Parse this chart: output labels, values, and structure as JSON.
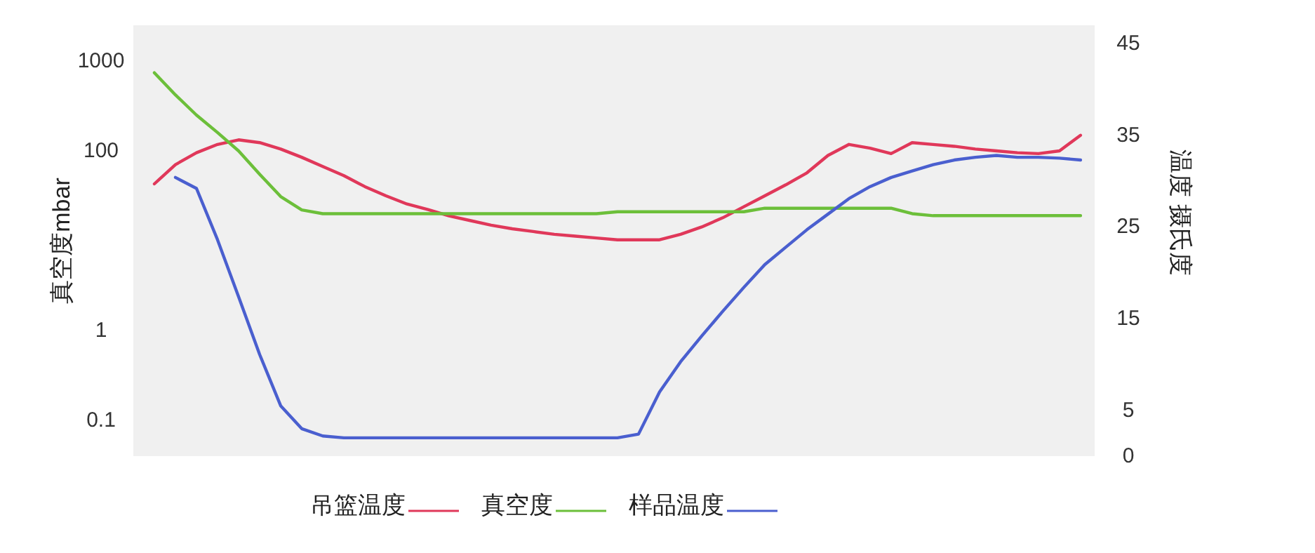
{
  "chart_data": {
    "type": "line",
    "ylabel": "真空度mbar",
    "y2label": "温度 摄氏度",
    "categories": [
      null,
      null,
      null,
      null,
      null,
      null,
      null,
      null,
      null,
      null,
      null,
      null,
      null,
      null,
      null,
      null,
      null,
      null,
      null,
      null,
      null,
      null,
      null,
      null,
      null,
      null,
      null,
      null,
      null,
      null,
      null,
      null,
      null,
      null,
      null,
      null,
      null,
      null,
      null,
      null,
      null,
      null,
      null,
      null,
      null
    ],
    "series": [
      {
        "name": "吊篮温度",
        "color": "#e0385a",
        "axis": "y2",
        "values": [
          29.7,
          31.8,
          33.1,
          34.0,
          34.5,
          34.2,
          33.5,
          32.6,
          31.6,
          30.6,
          29.4,
          28.4,
          27.5,
          26.9,
          26.2,
          25.7,
          25.2,
          24.8,
          24.5,
          24.2,
          24.0,
          23.8,
          23.6,
          23.6,
          23.6,
          24.2,
          25.0,
          26.0,
          27.2,
          28.4,
          29.6,
          30.9,
          32.8,
          34.0,
          33.6,
          33.0,
          34.2,
          34.0,
          33.8,
          33.5,
          33.3,
          33.1,
          33.0,
          33.3,
          35.0
        ]
      },
      {
        "name": "真空度",
        "color": "#6cbf3a",
        "values": [
          740,
          420,
          250,
          160,
          100,
          55,
          31,
          22,
          20,
          20,
          20,
          20,
          20,
          20,
          20,
          20,
          20,
          20,
          20,
          20,
          20,
          20,
          21,
          21,
          21,
          21,
          21,
          21,
          21,
          23,
          23,
          23,
          23,
          23,
          23,
          23,
          20,
          19,
          19,
          19,
          19,
          19,
          19,
          19,
          19
        ]
      },
      {
        "name": "样品温度",
        "color": "#4a5fcf",
        "axis": "y2",
        "values": [
          null,
          30.4,
          29.2,
          23.6,
          17.4,
          11.1,
          5.5,
          3.0,
          2.2,
          2.0,
          2.0,
          2.0,
          2.0,
          2.0,
          2.0,
          2.0,
          2.0,
          2.0,
          2.0,
          2.0,
          2.0,
          2.0,
          2.0,
          2.4,
          7.0,
          10.3,
          13.1,
          15.8,
          18.4,
          20.9,
          22.8,
          24.7,
          26.4,
          28.1,
          29.4,
          30.4,
          31.1,
          31.8,
          32.3,
          32.6,
          32.8,
          32.6,
          32.6,
          32.5,
          32.3
        ]
      }
    ],
    "log": "y",
    "ylim": [
      0.04,
      2500
    ],
    "yticks": [
      1000,
      100,
      1,
      0.1
    ],
    "y2lim": [
      0,
      47
    ],
    "y2ticks": [
      45,
      35,
      25,
      15,
      5,
      0
    ],
    "grid": false,
    "legend": "bottom",
    "marker": "none",
    "line_style": "solid"
  }
}
